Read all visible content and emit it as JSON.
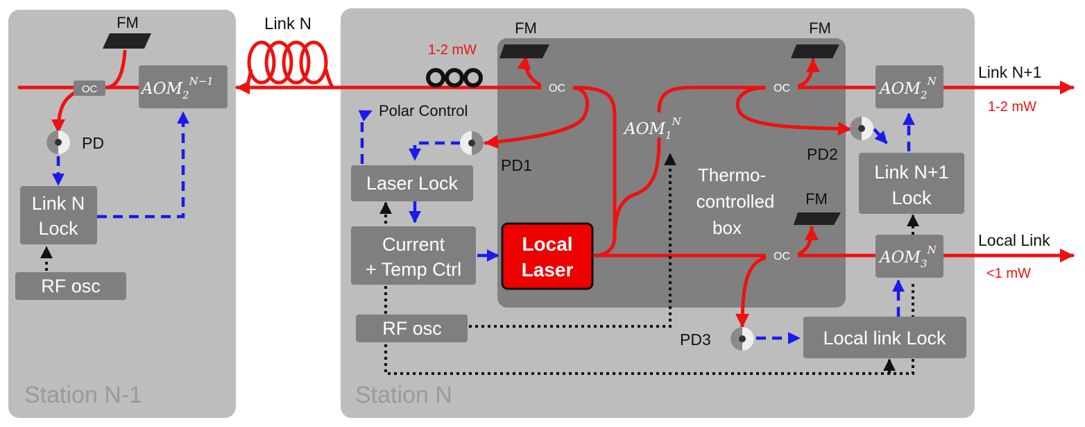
{
  "stations": {
    "left": {
      "label": "Station N-1"
    },
    "right": {
      "label": "Station N"
    }
  },
  "thermo_box": {
    "label_line1": "Thermo-",
    "label_line2": "controlled",
    "label_line3": "box"
  },
  "links": {
    "link_n": "Link N",
    "link_n_plus_1": "Link N+1",
    "local_link": "Local Link"
  },
  "powers": {
    "link_n": "1-2 mW",
    "link_n_plus_1": "1-2 mW",
    "local_link": "<1 mW"
  },
  "fm_label": "FM",
  "oc_label": "OC",
  "photodiodes": {
    "pd": "PD",
    "pd1": "PD1",
    "pd2": "PD2",
    "pd3": "PD3"
  },
  "polar_control": "Polar Control",
  "boxes": {
    "link_n_lock_1": "Link N",
    "link_n_lock_2": "Lock",
    "rf_osc_left": "RF osc",
    "laser_lock": "Laser Lock",
    "current_temp_1": "Current",
    "current_temp_2": "+ Temp Ctrl",
    "local_laser_1": "Local",
    "local_laser_2": "Laser",
    "rf_osc_right": "RF osc",
    "link_n1_lock_1": "Link N+1",
    "link_n1_lock_2": "Lock",
    "local_link_lock": "Local link Lock"
  },
  "aoms": {
    "aom_left": {
      "base": "AOM",
      "sub": "2",
      "sup": "N−1"
    },
    "aom1": {
      "base": "AOM",
      "sub": "1",
      "sup": "N"
    },
    "aom2": {
      "base": "AOM",
      "sub": "2",
      "sup": "N"
    },
    "aom3": {
      "base": "AOM",
      "sub": "3",
      "sup": "N"
    }
  },
  "colors": {
    "fiber": "#ee1111",
    "electrical": "#1a1aee",
    "reference": "#111111",
    "station_bg": "#bdbdbd",
    "box_bg": "#7f7f7f",
    "thermo_bg": "#808080",
    "laser_bg": "#ee0000",
    "fm": "#222222"
  }
}
